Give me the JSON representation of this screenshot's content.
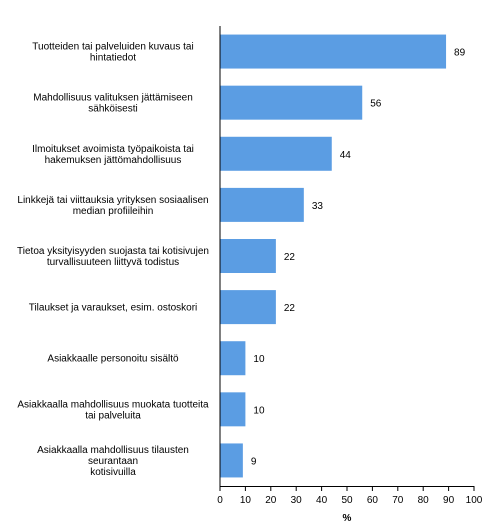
{
  "chart_data": {
    "type": "bar",
    "orientation": "horizontal",
    "categories": [
      [
        "Tuotteiden tai palveluiden kuvaus tai",
        "hintatiedot"
      ],
      [
        "Mahdollisuus valituksen jättämiseen",
        "sähköisesti"
      ],
      [
        "Ilmoitukset avoimista työpaikoista tai",
        "hakemuksen jättömahdollisuus"
      ],
      [
        "Linkkejä tai viittauksia yrityksen sosiaalisen",
        "median profiileihin"
      ],
      [
        "Tietoa yksityisyyden suojasta tai kotisivujen",
        "turvallisuuteen liittyvä todistus"
      ],
      [
        "Tilaukset ja varaukset, esim. ostoskori"
      ],
      [
        "Asiakkaalle personoitu sisältö"
      ],
      [
        "Asiakkaalla mahdollisuus muokata tuotteita",
        "tai palveluita"
      ],
      [
        "Asiakkaalla mahdollisuus tilausten",
        "seurantaan",
        "kotisivuilla"
      ]
    ],
    "values": [
      89,
      56,
      44,
      33,
      22,
      22,
      10,
      10,
      9
    ],
    "value_labels": [
      "89",
      "56",
      "44",
      "33",
      "22",
      "22",
      "10",
      "10",
      "9"
    ],
    "xlim": [
      0,
      100
    ],
    "xticks": [
      0,
      10,
      20,
      30,
      40,
      50,
      60,
      70,
      80,
      90,
      100
    ],
    "xlabel": "%",
    "bar_color": "#5b9de3",
    "grid": false
  }
}
